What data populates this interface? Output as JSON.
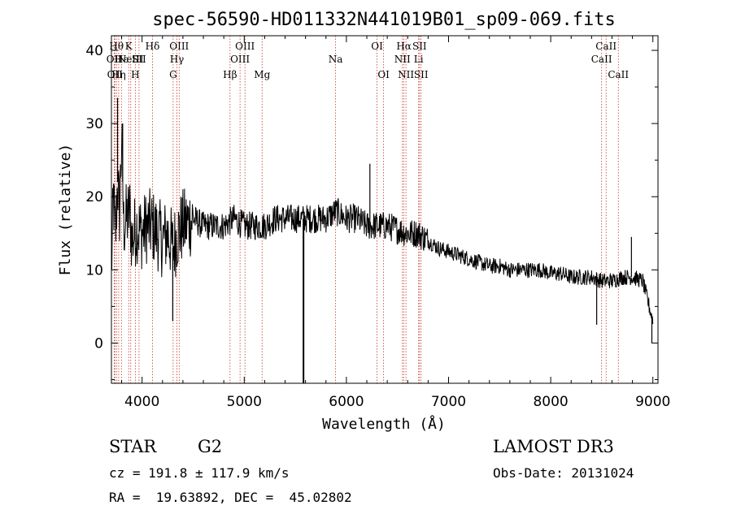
{
  "chart_data": {
    "type": "line",
    "title": "spec-56590-HD011332N441019B01_sp09-069.fits",
    "xlabel": "Wavelength (Å)",
    "ylabel": "Flux (relative)",
    "xlim": [
      3700,
      9050
    ],
    "ylim": [
      -5.5,
      42
    ],
    "x_ticks": [
      {
        "value": 4000,
        "label": "4000"
      },
      {
        "value": 5000,
        "label": "5000"
      },
      {
        "value": 6000,
        "label": "6000"
      },
      {
        "value": 7000,
        "label": "7000"
      },
      {
        "value": 8000,
        "label": "8000"
      },
      {
        "value": 9000,
        "label": "9000"
      }
    ],
    "y_ticks": [
      {
        "value": 0,
        "label": "0"
      },
      {
        "value": 10,
        "label": "10"
      },
      {
        "value": 20,
        "label": "20"
      },
      {
        "value": 30,
        "label": "30"
      },
      {
        "value": 40,
        "label": "40"
      }
    ],
    "spectrum": {
      "name": "flux",
      "noise_amplitude": 2.0,
      "points": [
        [
          3700,
          10
        ],
        [
          3720,
          20
        ],
        [
          3740,
          14
        ],
        [
          3760,
          22
        ],
        [
          3780,
          18
        ],
        [
          3800,
          28
        ],
        [
          3820,
          16
        ],
        [
          3850,
          17
        ],
        [
          3880,
          18
        ],
        [
          3900,
          14
        ],
        [
          3950,
          16
        ],
        [
          4000,
          15
        ],
        [
          4050,
          16
        ],
        [
          4100,
          16
        ],
        [
          4150,
          15
        ],
        [
          4200,
          14
        ],
        [
          4250,
          15
        ],
        [
          4300,
          13
        ],
        [
          4350,
          15
        ],
        [
          4400,
          16
        ],
        [
          4500,
          17
        ],
        [
          4600,
          16
        ],
        [
          4700,
          16
        ],
        [
          4800,
          16
        ],
        [
          4900,
          17
        ],
        [
          5000,
          16
        ],
        [
          5100,
          16
        ],
        [
          5200,
          16
        ],
        [
          5300,
          17
        ],
        [
          5400,
          17
        ],
        [
          5500,
          17
        ],
        [
          5600,
          17
        ],
        [
          5700,
          17
        ],
        [
          5800,
          17
        ],
        [
          5900,
          18
        ],
        [
          6000,
          17
        ],
        [
          6100,
          17
        ],
        [
          6200,
          16
        ],
        [
          6300,
          16
        ],
        [
          6400,
          16
        ],
        [
          6500,
          15.5
        ],
        [
          6600,
          15
        ],
        [
          6700,
          15
        ],
        [
          6800,
          14
        ],
        [
          6900,
          13
        ],
        [
          7000,
          12.5
        ],
        [
          7100,
          12
        ],
        [
          7200,
          11.5
        ],
        [
          7300,
          11
        ],
        [
          7400,
          10.5
        ],
        [
          7500,
          10.5
        ],
        [
          7600,
          10
        ],
        [
          7700,
          10
        ],
        [
          7800,
          10
        ],
        [
          7900,
          10
        ],
        [
          8000,
          9.5
        ],
        [
          8100,
          9.5
        ],
        [
          8200,
          9
        ],
        [
          8300,
          9
        ],
        [
          8400,
          9
        ],
        [
          8500,
          8.5
        ],
        [
          8600,
          8.5
        ],
        [
          8700,
          9
        ],
        [
          8800,
          9
        ],
        [
          8900,
          8.5
        ],
        [
          9000,
          3
        ]
      ],
      "spikes": [
        {
          "x": 3760,
          "y": 33.5
        },
        {
          "x": 3810,
          "y": 30
        },
        {
          "x": 4300,
          "y": 3
        },
        {
          "x": 5580,
          "y": -5.5
        },
        {
          "x": 6230,
          "y": 24.5
        },
        {
          "x": 8450,
          "y": 2.5
        },
        {
          "x": 8790,
          "y": 14.5
        },
        {
          "x": 8990,
          "y": 0
        }
      ]
    },
    "line_markers": [
      {
        "x": 3727,
        "label": "OII",
        "row": 1
      },
      {
        "x": 3734,
        "label": "OII",
        "row": 2
      },
      {
        "x": 3750,
        "label": "Hθ",
        "row": 0
      },
      {
        "x": 3771,
        "label": "Hη",
        "row": 2
      },
      {
        "x": 3798,
        "label": "Hε",
        "row": 1
      },
      {
        "x": 3869,
        "label": "K",
        "row": 0
      },
      {
        "x": 3889,
        "label": "NeIII",
        "row": 1
      },
      {
        "x": 3934,
        "label": "H",
        "row": 2
      },
      {
        "x": 3970,
        "label": "SII",
        "row": 1
      },
      {
        "x": 4102,
        "label": "Hδ",
        "row": 0
      },
      {
        "x": 4304,
        "label": "G",
        "row": 2
      },
      {
        "x": 4341,
        "label": "Hγ",
        "row": 1
      },
      {
        "x": 4363,
        "label": "OIII",
        "row": 0
      },
      {
        "x": 4861,
        "label": "Hβ",
        "row": 2
      },
      {
        "x": 4959,
        "label": "OIII",
        "row": 1
      },
      {
        "x": 5007,
        "label": "OIII",
        "row": 0
      },
      {
        "x": 5175,
        "label": "Mg",
        "row": 2
      },
      {
        "x": 5894,
        "label": "Na",
        "row": 1
      },
      {
        "x": 6300,
        "label": "OI",
        "row": 0
      },
      {
        "x": 6364,
        "label": "OI",
        "row": 2
      },
      {
        "x": 6548,
        "label": "NII",
        "row": 1
      },
      {
        "x": 6563,
        "label": "Hα",
        "row": 0
      },
      {
        "x": 6583,
        "label": "NII",
        "row": 2
      },
      {
        "x": 6707,
        "label": "Li",
        "row": 1
      },
      {
        "x": 6716,
        "label": "SII",
        "row": 0
      },
      {
        "x": 6731,
        "label": "SII",
        "row": 2
      },
      {
        "x": 8498,
        "label": "CaII",
        "row": 1
      },
      {
        "x": 8542,
        "label": "CaII",
        "row": 0
      },
      {
        "x": 8662,
        "label": "CaII",
        "row": 2
      }
    ],
    "colors": {
      "spectrum": "#000000",
      "markers": "#c0392b",
      "axes": "#000000"
    }
  },
  "info": {
    "class": "STAR",
    "subclass": "G2",
    "survey": "LAMOST DR3",
    "cz": "cz = 191.8 ± 117.9 km/s",
    "obs_date": "Obs-Date: 20131024",
    "coords": "RA =  19.63892, DEC =  45.02802"
  }
}
